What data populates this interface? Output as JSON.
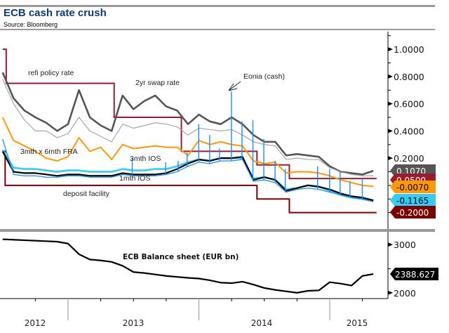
{
  "header": {
    "title": "ECB cash rate crush",
    "source": "Source: Bloomberg"
  },
  "chart_data": [
    {
      "type": "line",
      "panel": "top",
      "axis_side": "right",
      "ylim": [
        -0.29,
        1.13
      ],
      "yticks": [
        1.0,
        0.8,
        0.6,
        0.4,
        0.2
      ],
      "ytick_labels": [
        "1.0000",
        "0.8000",
        "0.6000",
        "0.4000",
        "0.2000"
      ],
      "grid": false,
      "months": [
        "2012-07-01",
        "2012-08-01",
        "2012-09-01",
        "2012-10-01",
        "2012-11-01",
        "2012-12-01",
        "2013-01-01",
        "2013-02-01",
        "2013-03-01",
        "2013-04-01",
        "2013-05-01",
        "2013-06-01",
        "2013-07-01",
        "2013-08-01",
        "2013-09-01",
        "2013-10-01",
        "2013-11-01",
        "2013-12-01",
        "2014-01-01",
        "2014-02-01",
        "2014-03-01",
        "2014-04-01",
        "2014-05-01",
        "2014-06-01",
        "2014-07-01",
        "2014-08-01",
        "2014-09-01",
        "2014-10-01",
        "2014-11-01",
        "2014-12-01",
        "2015-01-01",
        "2015-02-01",
        "2015-03-01",
        "2015-04-01",
        "2015-05-01"
      ],
      "series": [
        {
          "name": "2yr swap rate",
          "color": "#555555",
          "width": 2.6,
          "last_label": "0.1070",
          "values": [
            0.83,
            0.64,
            0.55,
            0.5,
            0.46,
            0.4,
            0.45,
            0.7,
            0.5,
            0.44,
            0.4,
            0.66,
            0.56,
            0.62,
            0.66,
            0.58,
            0.55,
            0.45,
            0.52,
            0.47,
            0.45,
            0.5,
            0.45,
            0.37,
            0.32,
            0.32,
            0.22,
            0.23,
            0.22,
            0.21,
            0.14,
            0.1,
            0.09,
            0.08,
            0.107
          ]
        },
        {
          "color": "#a6a6a6",
          "width": 1.2,
          "values": [
            0.78,
            0.6,
            0.48,
            0.4,
            0.4,
            0.35,
            0.38,
            0.5,
            0.4,
            0.36,
            0.32,
            0.45,
            0.42,
            0.44,
            0.46,
            0.45,
            0.43,
            0.37,
            0.42,
            0.41,
            0.4,
            0.41,
            0.37,
            0.32,
            0.3,
            0.29,
            0.19,
            0.2,
            0.19,
            0.19,
            0.13,
            0.1,
            0.08,
            0.07,
            0.07
          ]
        },
        {
          "name": "3mth x 6mth FRA",
          "color": "#ff9900",
          "width": 2,
          "last_label": "-0.0070",
          "values": [
            0.5,
            0.33,
            0.29,
            0.25,
            0.2,
            0.18,
            0.21,
            0.35,
            0.25,
            0.28,
            0.19,
            0.3,
            0.27,
            0.28,
            0.29,
            0.28,
            0.28,
            0.22,
            0.33,
            0.3,
            0.32,
            0.3,
            0.29,
            0.18,
            0.16,
            0.17,
            0.09,
            0.1,
            0.1,
            0.09,
            0.07,
            0.04,
            0.02,
            0.0,
            -0.007
          ]
        },
        {
          "name": "3mth IOS",
          "color": "#33ccf5",
          "width": 2.6,
          "last_label": "-0.1165",
          "values": [
            0.26,
            0.13,
            0.12,
            0.12,
            0.11,
            0.1,
            0.11,
            0.11,
            0.1,
            0.1,
            0.1,
            0.12,
            0.11,
            0.11,
            0.12,
            0.12,
            0.14,
            0.17,
            0.19,
            0.18,
            0.2,
            0.2,
            0.2,
            0.05,
            0.06,
            0.04,
            -0.03,
            -0.02,
            0.0,
            -0.01,
            -0.04,
            -0.07,
            -0.09,
            -0.1,
            -0.1165
          ]
        },
        {
          "name": "1mth IOS",
          "color": "#000000",
          "width": 2.2,
          "values": [
            0.25,
            0.1,
            0.09,
            0.09,
            0.08,
            0.07,
            0.08,
            0.08,
            0.07,
            0.07,
            0.07,
            0.09,
            0.08,
            0.08,
            0.08,
            0.09,
            0.12,
            0.16,
            0.19,
            0.18,
            0.2,
            0.2,
            0.21,
            0.04,
            0.06,
            0.04,
            -0.04,
            -0.02,
            0.0,
            -0.01,
            -0.03,
            -0.06,
            -0.08,
            -0.09,
            -0.11
          ]
        },
        {
          "name": "Eonia (cash)",
          "color": "#1a8cff",
          "width": 1.3,
          "values": [
            0.34,
            0.08,
            0.07,
            0.07,
            0.06,
            0.06,
            0.07,
            0.07,
            0.06,
            0.06,
            0.06,
            0.08,
            0.07,
            0.07,
            0.07,
            0.08,
            0.1,
            0.14,
            0.17,
            0.16,
            0.18,
            0.18,
            0.19,
            0.03,
            0.04,
            0.02,
            -0.05,
            -0.03,
            -0.02,
            -0.03,
            -0.05,
            -0.07,
            -0.09,
            -0.1,
            -0.12
          ],
          "spikes": [
            [
              "2013-06-28",
              0.2
            ],
            [
              "2013-09-30",
              0.17
            ],
            [
              "2013-11-04",
              0.18
            ],
            [
              "2013-11-29",
              0.24
            ],
            [
              "2013-12-31",
              0.45
            ],
            [
              "2014-01-31",
              0.37
            ],
            [
              "2014-02-28",
              0.27
            ],
            [
              "2014-03-31",
              0.69
            ],
            [
              "2014-04-30",
              0.47
            ],
            [
              "2014-05-30",
              0.48
            ],
            [
              "2014-06-30",
              0.34
            ],
            [
              "2014-07-31",
              0.18
            ],
            [
              "2014-08-29",
              0.12
            ],
            [
              "2014-11-28",
              0.14
            ],
            [
              "2014-12-31",
              0.12
            ],
            [
              "2015-01-30",
              0.1
            ],
            [
              "2015-02-27",
              0.03
            ],
            [
              "2015-03-31",
              0.05
            ]
          ]
        }
      ],
      "steps": [
        {
          "name": "refi policy rate",
          "color": "#9b1b30",
          "last_label": "0.0500",
          "points": [
            [
              "2012-07-01",
              1.0
            ],
            [
              "2012-07-11",
              0.75
            ],
            [
              "2013-05-08",
              0.5
            ],
            [
              "2013-11-13",
              0.25
            ],
            [
              "2014-06-11",
              0.15
            ],
            [
              "2014-09-10",
              0.05
            ],
            [
              "2015-05-10",
              0.05
            ]
          ]
        },
        {
          "name": "deposit facility",
          "color": "#7b0000",
          "last_label": "-0.2000",
          "points": [
            [
              "2012-07-01",
              0.25
            ],
            [
              "2012-07-08",
              0.0
            ],
            [
              "2014-06-11",
              -0.1
            ],
            [
              "2014-09-10",
              -0.2
            ],
            [
              "2015-05-10",
              -0.2
            ]
          ]
        }
      ],
      "annotations": {
        "refi": "refi policy rate",
        "swap": "2yr swap rate",
        "eonia": "Eonia (cash)",
        "fra": "3mth x 6mth FRA",
        "ios3": "3mth IOS",
        "ios1": "1mth IOS",
        "deposit": "deposit facility"
      }
    },
    {
      "type": "line",
      "panel": "bottom",
      "axis_side": "right",
      "title": "ECB Balance sheet (EUR bn)",
      "ylim": [
        1880,
        3220
      ],
      "yticks": [
        3000,
        2000
      ],
      "ytick_labels": [
        "3000",
        "2000"
      ],
      "minor_yticks": [
        2500
      ],
      "last_label": "2388.627",
      "color": "#000000",
      "values": [
        3110,
        3100,
        3090,
        3080,
        3070,
        3060,
        3020,
        2800,
        2690,
        2670,
        2640,
        2560,
        2430,
        2410,
        2380,
        2350,
        2330,
        2310,
        2295,
        2260,
        2210,
        2200,
        2230,
        2170,
        2100,
        2060,
        2030,
        2000,
        2040,
        2050,
        2220,
        2190,
        2150,
        2350,
        2389
      ],
      "xticks": [
        "2012",
        "2013",
        "2014",
        "2015"
      ]
    }
  ]
}
